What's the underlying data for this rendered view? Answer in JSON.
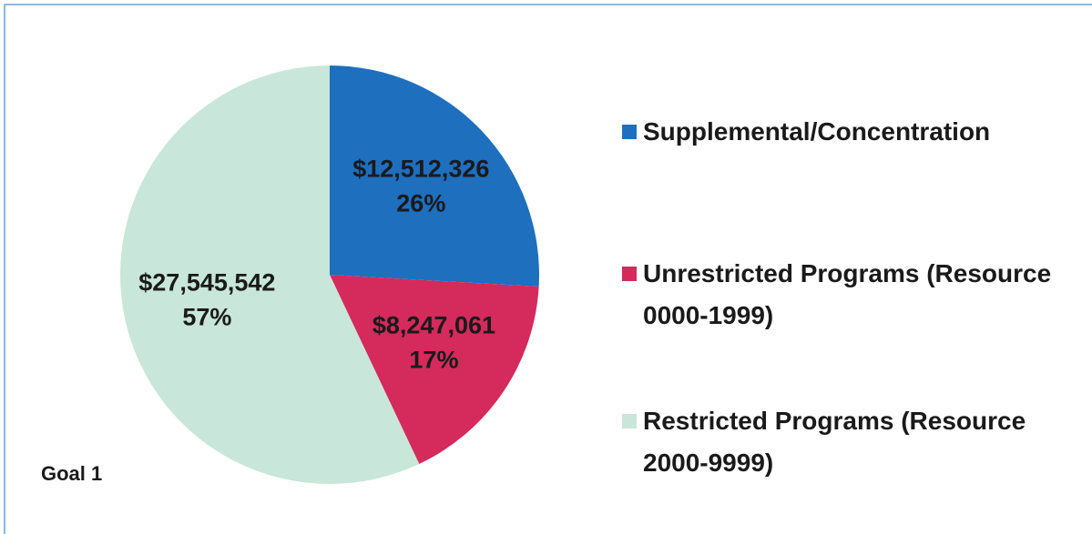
{
  "chart_data": {
    "type": "pie",
    "categories": [
      "Supplemental/Concentration",
      "Unrestricted Programs (Resource 0000-1999)",
      "Restricted Programs (Resource 2000-9999)"
    ],
    "values": [
      12512326,
      8247061,
      27545542
    ],
    "value_labels": [
      "$12,512,326",
      "$8,247,061",
      "$27,545,542"
    ],
    "percentages": [
      26,
      17,
      57
    ],
    "percentage_labels": [
      "26%",
      "17%",
      "57%"
    ],
    "colors": [
      "#1e6fbe",
      "#d42a5c",
      "#c8e6d9"
    ],
    "annotation": "Goal 1",
    "legend": "right"
  }
}
